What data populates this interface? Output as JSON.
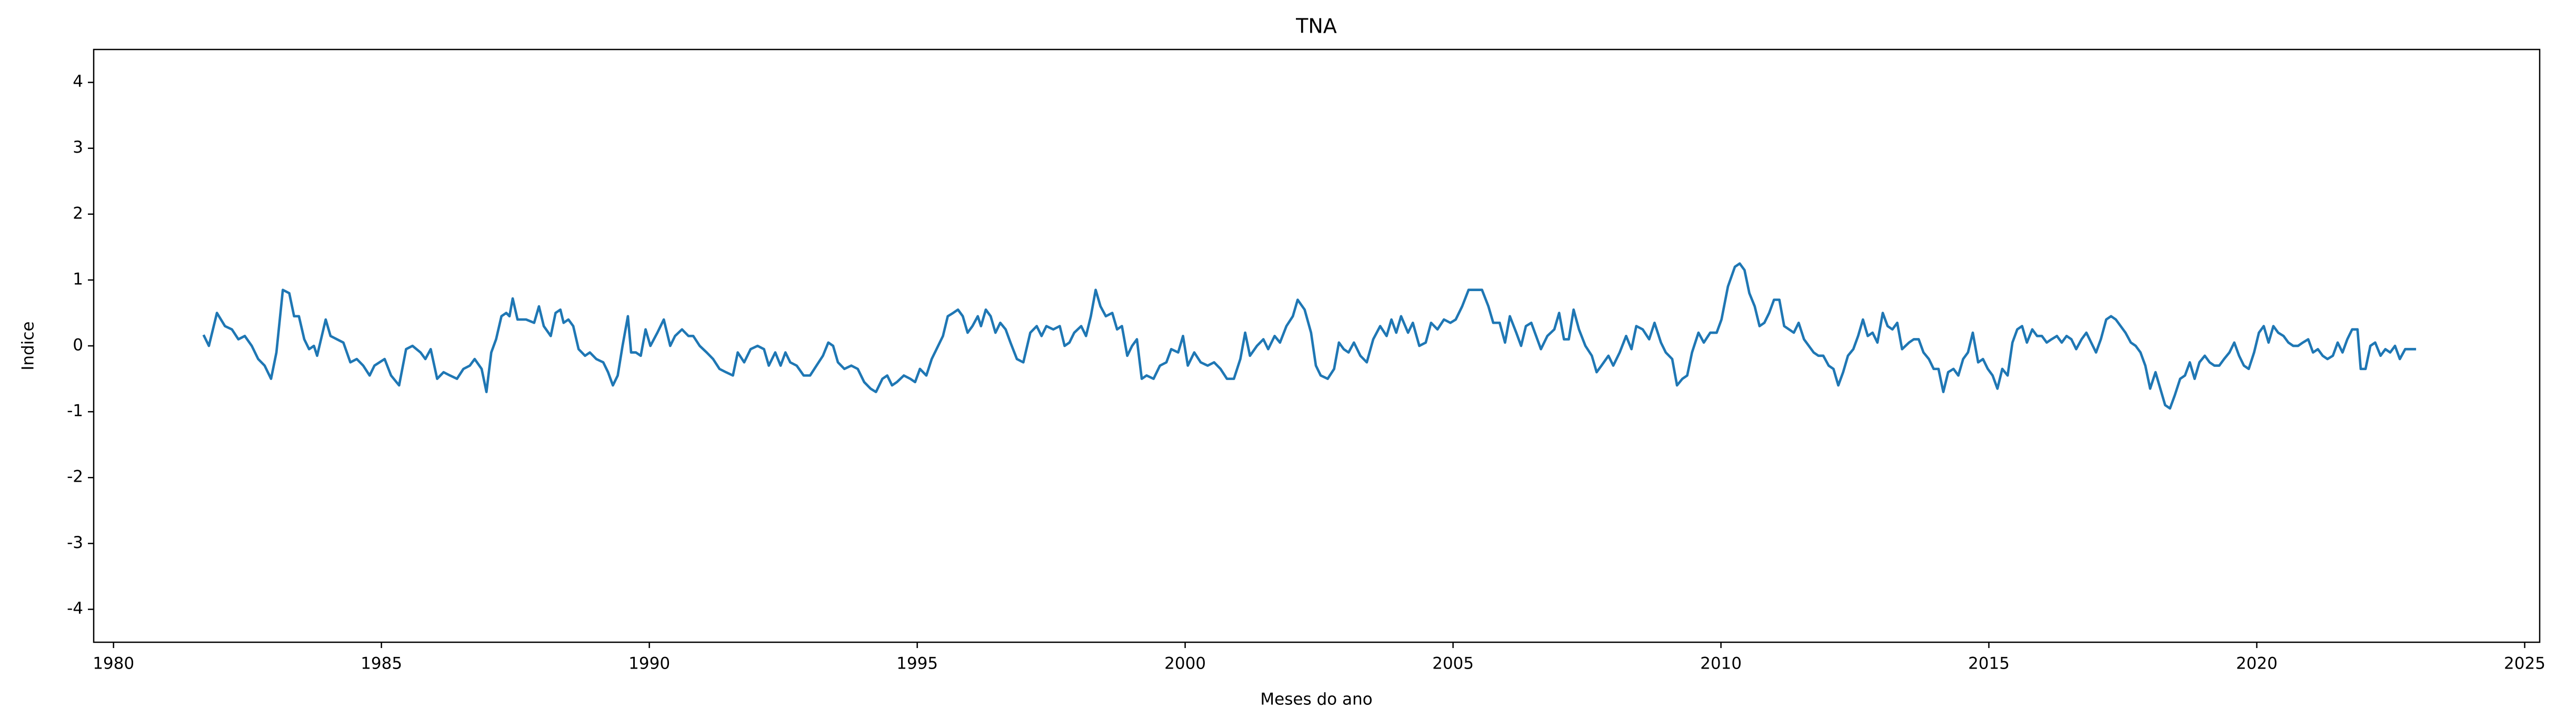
{
  "chart_data": {
    "type": "line",
    "title": "TNA",
    "xlabel": "Meses do ano",
    "ylabel": "Indice",
    "color": "#1f77b4",
    "xlim": [
      1979.63,
      2025.28
    ],
    "ylim": [
      -4.5,
      4.5
    ],
    "xticks": [
      1980,
      1985,
      1990,
      1995,
      2000,
      2005,
      2010,
      2015,
      2020,
      2025
    ],
    "yticks": [
      -4,
      -3,
      -2,
      -1,
      0,
      1,
      2,
      3,
      4
    ],
    "grid": false,
    "x": [
      1981.69,
      1981.78,
      1981.93,
      1982.08,
      1982.21,
      1982.33,
      1982.45,
      1982.58,
      1982.7,
      1982.82,
      1982.94,
      1983.04,
      1983.16,
      1983.28,
      1983.37,
      1983.46,
      1983.56,
      1983.65,
      1983.74,
      1983.8,
      1983.96,
      1984.05,
      1984.17,
      1984.29,
      1984.42,
      1984.54,
      1984.66,
      1984.78,
      1984.87,
      1985.06,
      1985.18,
      1985.33,
      1985.46,
      1985.58,
      1985.73,
      1985.82,
      1985.92,
      1986.04,
      1986.16,
      1986.28,
      1986.41,
      1986.53,
      1986.65,
      1986.74,
      1986.87,
      1986.96,
      1987.05,
      1987.14,
      1987.24,
      1987.33,
      1987.39,
      1987.45,
      1987.54,
      1987.7,
      1987.85,
      1987.94,
      1988.03,
      1988.16,
      1988.25,
      1988.34,
      1988.4,
      1988.49,
      1988.58,
      1988.68,
      1988.8,
      1988.89,
      1989.01,
      1989.14,
      1989.23,
      1989.32,
      1989.41,
      1989.5,
      1989.6,
      1989.66,
      1989.75,
      1989.84,
      1989.93,
      1990.02,
      1990.15,
      1990.27,
      1990.39,
      1990.48,
      1990.61,
      1990.73,
      1990.82,
      1990.94,
      1991.07,
      1991.19,
      1991.31,
      1991.43,
      1991.56,
      1991.65,
      1991.77,
      1991.89,
      1992.02,
      1992.14,
      1992.23,
      1992.35,
      1992.45,
      1992.54,
      1992.63,
      1992.75,
      1992.88,
      1993.0,
      1993.12,
      1993.24,
      1993.34,
      1993.43,
      1993.52,
      1993.64,
      1993.77,
      1993.89,
      1994.01,
      1994.13,
      1994.23,
      1994.35,
      1994.44,
      1994.53,
      1994.62,
      1994.75,
      1994.87,
      1994.96,
      1995.05,
      1995.17,
      1995.27,
      1995.36,
      1995.48,
      1995.57,
      1995.67,
      1995.76,
      1995.85,
      1995.94,
      1996.03,
      1996.13,
      1996.19,
      1996.28,
      1996.37,
      1996.46,
      1996.55,
      1996.65,
      1996.74,
      1996.86,
      1996.98,
      1997.11,
      1997.23,
      1997.32,
      1997.41,
      1997.54,
      1997.66,
      1997.75,
      1997.84,
      1997.93,
      1998.06,
      1998.15,
      1998.24,
      1998.33,
      1998.42,
      1998.52,
      1998.64,
      1998.73,
      1998.82,
      1998.92,
      1999.01,
      1999.1,
      1999.19,
      1999.28,
      1999.41,
      1999.53,
      1999.65,
      1999.74,
      1999.87,
      1999.96,
      2000.05,
      2000.17,
      2000.29,
      2000.42,
      2000.54,
      2000.66,
      2000.78,
      2000.91,
      2001.03,
      2001.12,
      2001.21,
      2001.34,
      2001.46,
      2001.55,
      2001.67,
      2001.77,
      2001.89,
      2002.01,
      2002.1,
      2002.23,
      2002.35,
      2002.44,
      2002.53,
      2002.66,
      2002.78,
      2002.87,
      2002.96,
      2003.05,
      2003.15,
      2003.27,
      2003.39,
      2003.51,
      2003.64,
      2003.76,
      2003.85,
      2003.94,
      2004.03,
      2004.16,
      2004.25,
      2004.37,
      2004.49,
      2004.59,
      2004.71,
      2004.83,
      2004.95,
      2005.05,
      2005.17,
      2005.29,
      2005.41,
      2005.54,
      2005.66,
      2005.75,
      2005.87,
      2005.97,
      2006.06,
      2006.18,
      2006.27,
      2006.36,
      2006.46,
      2006.55,
      2006.64,
      2006.76,
      2006.89,
      2006.98,
      2007.07,
      2007.16,
      2007.25,
      2007.35,
      2007.47,
      2007.59,
      2007.68,
      2007.77,
      2007.9,
      2007.99,
      2008.11,
      2008.23,
      2008.33,
      2008.42,
      2008.54,
      2008.66,
      2008.76,
      2008.88,
      2008.97,
      2009.09,
      2009.18,
      2009.28,
      2009.37,
      2009.46,
      2009.58,
      2009.68,
      2009.8,
      2009.92,
      2010.01,
      2010.13,
      2010.26,
      2010.35,
      2010.44,
      2010.53,
      2010.63,
      2010.72,
      2010.81,
      2010.9,
      2010.99,
      2011.09,
      2011.18,
      2011.27,
      2011.36,
      2011.45,
      2011.55,
      2011.64,
      2011.73,
      2011.82,
      2011.91,
      2012.01,
      2012.1,
      2012.19,
      2012.28,
      2012.37,
      2012.47,
      2012.56,
      2012.65,
      2012.74,
      2012.83,
      2012.92,
      2013.02,
      2013.11,
      2013.2,
      2013.29,
      2013.38,
      2013.51,
      2013.6,
      2013.69,
      2013.78,
      2013.88,
      2013.97,
      2014.06,
      2014.15,
      2014.24,
      2014.34,
      2014.43,
      2014.52,
      2014.61,
      2014.7,
      2014.8,
      2014.89,
      2014.98,
      2015.07,
      2015.16,
      2015.25,
      2015.35,
      2015.44,
      2015.53,
      2015.62,
      2015.71,
      2015.81,
      2015.9,
      2015.99,
      2016.08,
      2016.17,
      2016.27,
      2016.36,
      2016.45,
      2016.54,
      2016.63,
      2016.73,
      2016.82,
      2016.91,
      2017.0,
      2017.09,
      2017.19,
      2017.28,
      2017.37,
      2017.46,
      2017.55,
      2017.65,
      2017.74,
      2017.83,
      2017.92,
      2018.01,
      2018.11,
      2018.2,
      2018.29,
      2018.38,
      2018.47,
      2018.57,
      2018.66,
      2018.75,
      2018.84,
      2018.93,
      2019.03,
      2019.12,
      2019.21,
      2019.3,
      2019.39,
      2019.49,
      2019.58,
      2019.67,
      2019.76,
      2019.85,
      2019.95,
      2020.04,
      2020.13,
      2020.22,
      2020.31,
      2020.4,
      2020.5,
      2020.59,
      2020.68,
      2020.77,
      2020.86,
      2020.96,
      2021.05,
      2021.14,
      2021.23,
      2021.32,
      2021.42,
      2021.51,
      2021.6,
      2021.69,
      2021.78,
      2021.88,
      2021.94,
      2022.03,
      2022.12,
      2022.21,
      2022.31,
      2022.4,
      2022.49,
      2022.58,
      2022.67,
      2022.77,
      2022.86,
      2022.95
    ],
    "values": [
      0.15,
      0.0,
      0.5,
      0.3,
      0.25,
      0.1,
      0.15,
      0.0,
      -0.2,
      -0.3,
      -0.5,
      -0.1,
      0.85,
      0.8,
      0.45,
      0.45,
      0.1,
      -0.05,
      0.0,
      -0.15,
      0.4,
      0.15,
      0.1,
      0.05,
      -0.25,
      -0.2,
      -0.3,
      -0.45,
      -0.3,
      -0.2,
      -0.45,
      -0.6,
      -0.05,
      0.0,
      -0.1,
      -0.2,
      -0.05,
      -0.5,
      -0.4,
      -0.45,
      -0.5,
      -0.35,
      -0.3,
      -0.2,
      -0.35,
      -0.7,
      -0.1,
      0.1,
      0.45,
      0.5,
      0.45,
      0.72,
      0.4,
      0.4,
      0.35,
      0.6,
      0.3,
      0.15,
      0.5,
      0.55,
      0.35,
      0.4,
      0.3,
      -0.05,
      -0.15,
      -0.1,
      -0.2,
      -0.25,
      -0.4,
      -0.6,
      -0.45,
      0.0,
      0.45,
      -0.1,
      -0.1,
      -0.15,
      0.25,
      0.0,
      0.2,
      0.4,
      0.0,
      0.15,
      0.25,
      0.15,
      0.15,
      0.0,
      -0.1,
      -0.2,
      -0.35,
      -0.4,
      -0.45,
      -0.1,
      -0.25,
      -0.05,
      0.0,
      -0.05,
      -0.3,
      -0.1,
      -0.3,
      -0.1,
      -0.25,
      -0.3,
      -0.45,
      -0.45,
      -0.3,
      -0.15,
      0.05,
      0.0,
      -0.25,
      -0.35,
      -0.3,
      -0.35,
      -0.55,
      -0.65,
      -0.7,
      -0.5,
      -0.45,
      -0.6,
      -0.55,
      -0.45,
      -0.5,
      -0.55,
      -0.35,
      -0.45,
      -0.2,
      -0.05,
      0.15,
      0.45,
      0.5,
      0.55,
      0.45,
      0.2,
      0.3,
      0.45,
      0.3,
      0.55,
      0.45,
      0.2,
      0.35,
      0.25,
      0.05,
      -0.2,
      -0.25,
      0.2,
      0.3,
      0.15,
      0.3,
      0.25,
      0.3,
      0.0,
      0.05,
      0.2,
      0.3,
      0.15,
      0.45,
      0.85,
      0.6,
      0.45,
      0.5,
      0.25,
      0.3,
      -0.15,
      0.0,
      0.1,
      -0.5,
      -0.45,
      -0.5,
      -0.3,
      -0.25,
      -0.05,
      -0.1,
      0.15,
      -0.3,
      -0.1,
      -0.25,
      -0.3,
      -0.25,
      -0.35,
      -0.5,
      -0.5,
      -0.2,
      0.2,
      -0.15,
      0.0,
      0.1,
      -0.05,
      0.15,
      0.05,
      0.3,
      0.45,
      0.7,
      0.55,
      0.2,
      -0.3,
      -0.45,
      -0.5,
      -0.35,
      0.05,
      -0.05,
      -0.1,
      0.05,
      -0.15,
      -0.25,
      0.1,
      0.3,
      0.15,
      0.4,
      0.2,
      0.45,
      0.2,
      0.35,
      0.0,
      0.05,
      0.35,
      0.25,
      0.4,
      0.35,
      0.4,
      0.6,
      0.85,
      0.85,
      0.85,
      0.6,
      0.35,
      0.35,
      0.05,
      0.45,
      0.2,
      0.0,
      0.3,
      0.35,
      0.15,
      -0.05,
      0.15,
      0.25,
      0.5,
      0.1,
      0.1,
      0.55,
      0.25,
      0.0,
      -0.15,
      -0.4,
      -0.3,
      -0.15,
      -0.3,
      -0.1,
      0.15,
      -0.05,
      0.3,
      0.25,
      0.1,
      0.35,
      0.05,
      -0.1,
      -0.2,
      -0.6,
      -0.5,
      -0.45,
      -0.1,
      0.2,
      0.05,
      0.2,
      0.2,
      0.4,
      0.9,
      1.2,
      1.25,
      1.15,
      0.8,
      0.6,
      0.3,
      0.35,
      0.5,
      0.7,
      0.7,
      0.3,
      0.25,
      0.2,
      0.35,
      0.1,
      0.0,
      -0.1,
      -0.15,
      -0.15,
      -0.3,
      -0.35,
      -0.6,
      -0.4,
      -0.15,
      -0.05,
      0.15,
      0.4,
      0.15,
      0.2,
      0.05,
      0.5,
      0.3,
      0.25,
      0.35,
      -0.05,
      0.05,
      0.1,
      0.1,
      -0.1,
      -0.2,
      -0.35,
      -0.35,
      -0.7,
      -0.4,
      -0.35,
      -0.45,
      -0.2,
      -0.1,
      0.2,
      -0.25,
      -0.2,
      -0.35,
      -0.45,
      -0.65,
      -0.35,
      -0.45,
      0.05,
      0.25,
      0.3,
      0.05,
      0.25,
      0.15,
      0.15,
      0.05,
      0.1,
      0.15,
      0.05,
      0.15,
      0.1,
      -0.05,
      0.1,
      0.2,
      0.05,
      -0.1,
      0.1,
      0.4,
      0.45,
      0.4,
      0.3,
      0.2,
      0.05,
      0.0,
      -0.1,
      -0.3,
      -0.65,
      -0.4,
      -0.65,
      -0.9,
      -0.95,
      -0.75,
      -0.5,
      -0.45,
      -0.25,
      -0.5,
      -0.25,
      -0.15,
      -0.25,
      -0.3,
      -0.3,
      -0.2,
      -0.1,
      0.05,
      -0.15,
      -0.3,
      -0.35,
      -0.1,
      0.2,
      0.3,
      0.05,
      0.3,
      0.2,
      0.15,
      0.05,
      0.0,
      0.0,
      0.05,
      0.1,
      -0.1,
      -0.05,
      -0.15,
      -0.2,
      -0.15,
      0.05,
      -0.1,
      0.1,
      0.25,
      0.25,
      -0.35,
      -0.35,
      0.0,
      0.05,
      -0.15,
      -0.05,
      -0.1,
      0.0,
      -0.2,
      -0.05,
      -0.05,
      -0.05
    ]
  }
}
